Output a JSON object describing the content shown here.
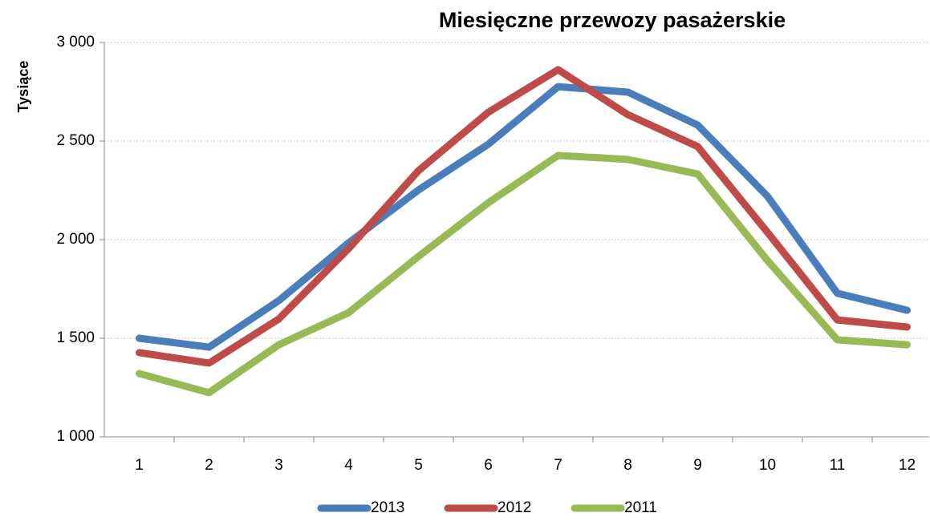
{
  "chart_data": {
    "type": "line",
    "title": "Miesięczne przewozy pasażerskie",
    "y_label": "Tysiące",
    "categories": [
      "1",
      "2",
      "3",
      "4",
      "5",
      "6",
      "7",
      "8",
      "9",
      "10",
      "11",
      "12"
    ],
    "series": [
      {
        "name": "2013",
        "color": "#4a7ebb",
        "values": [
          1500,
          1455,
          1691,
          1984,
          2252,
          2484,
          2776,
          2748,
          2581,
          2220,
          1728,
          1642
        ]
      },
      {
        "name": "2012",
        "color": "#be4b48",
        "values": [
          1427,
          1374,
          1598,
          1955,
          2350,
          2646,
          2862,
          2634,
          2472,
          2037,
          1593,
          1557
        ]
      },
      {
        "name": "2011",
        "color": "#98b954",
        "values": [
          1321,
          1224,
          1467,
          1630,
          1915,
          2187,
          2427,
          2407,
          2333,
          1894,
          1492,
          1467
        ]
      }
    ],
    "ylim": [
      1000,
      3000
    ],
    "yticks": [
      {
        "value": 1000,
        "label": "1 000"
      },
      {
        "value": 1500,
        "label": "1 500"
      },
      {
        "value": 2000,
        "label": "2 000"
      },
      {
        "value": 2500,
        "label": "2 500"
      },
      {
        "value": 3000,
        "label": "3 000"
      }
    ],
    "grid": true,
    "legend": "bottom"
  }
}
